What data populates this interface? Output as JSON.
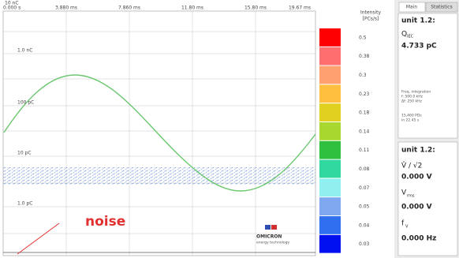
{
  "plot": {
    "corner_label": "10 nC",
    "time_labels": [
      "0.000 s",
      "3.880 ms",
      "7.860 ms",
      "11.80 ms",
      "15.80 ms",
      "19.67 ms"
    ],
    "level_labels": [
      "1.0 nC",
      "100 pC",
      "10 pC",
      "1.0 pC"
    ],
    "annotation": "noise"
  },
  "legend": {
    "title": "Intensity",
    "unit": "[PCs/s]",
    "items": [
      {
        "value": 0.5,
        "color": "#ff0000"
      },
      {
        "value": 0.38,
        "color": "#ff6f6f"
      },
      {
        "value": 0.3,
        "color": "#ffa070"
      },
      {
        "value": 0.23,
        "color": "#ffc040"
      },
      {
        "value": 0.18,
        "color": "#e0d020"
      },
      {
        "value": 0.14,
        "color": "#a8d830"
      },
      {
        "value": 0.11,
        "color": "#30c040"
      },
      {
        "value": 0.08,
        "color": "#30d8a0"
      },
      {
        "value": 0.07,
        "color": "#90f0f0"
      },
      {
        "value": 0.05,
        "color": "#80a8f0"
      },
      {
        "value": 0.04,
        "color": "#3070f0"
      },
      {
        "value": 0.03,
        "color": "#0010f0"
      }
    ]
  },
  "logo": {
    "name": "OMICRON",
    "tagline": "energy technology"
  },
  "side_panel": {
    "tabs": [
      "Main",
      "Statistics"
    ],
    "box1": {
      "unit": "unit 1.2:",
      "q": "Q",
      "q_sub": "IEC",
      "q_value": "4.733 pC",
      "note1": "Freq. integration",
      "note2": "f: 500.0 kHz",
      "note3": "Δf: 250 kHz",
      "count1": "15,460 PDs",
      "count2": "in 22.45 s"
    },
    "box2": {
      "unit": "unit 1.2:",
      "v_peak": "V̂ / √2",
      "v_peak_value": "0.000 V",
      "v_rms": "V",
      "v_rms_sub": "rms",
      "v_rms_value": "0.000 V",
      "f": "f",
      "f_sub": "V",
      "f_value": "0.000 Hz"
    }
  }
}
